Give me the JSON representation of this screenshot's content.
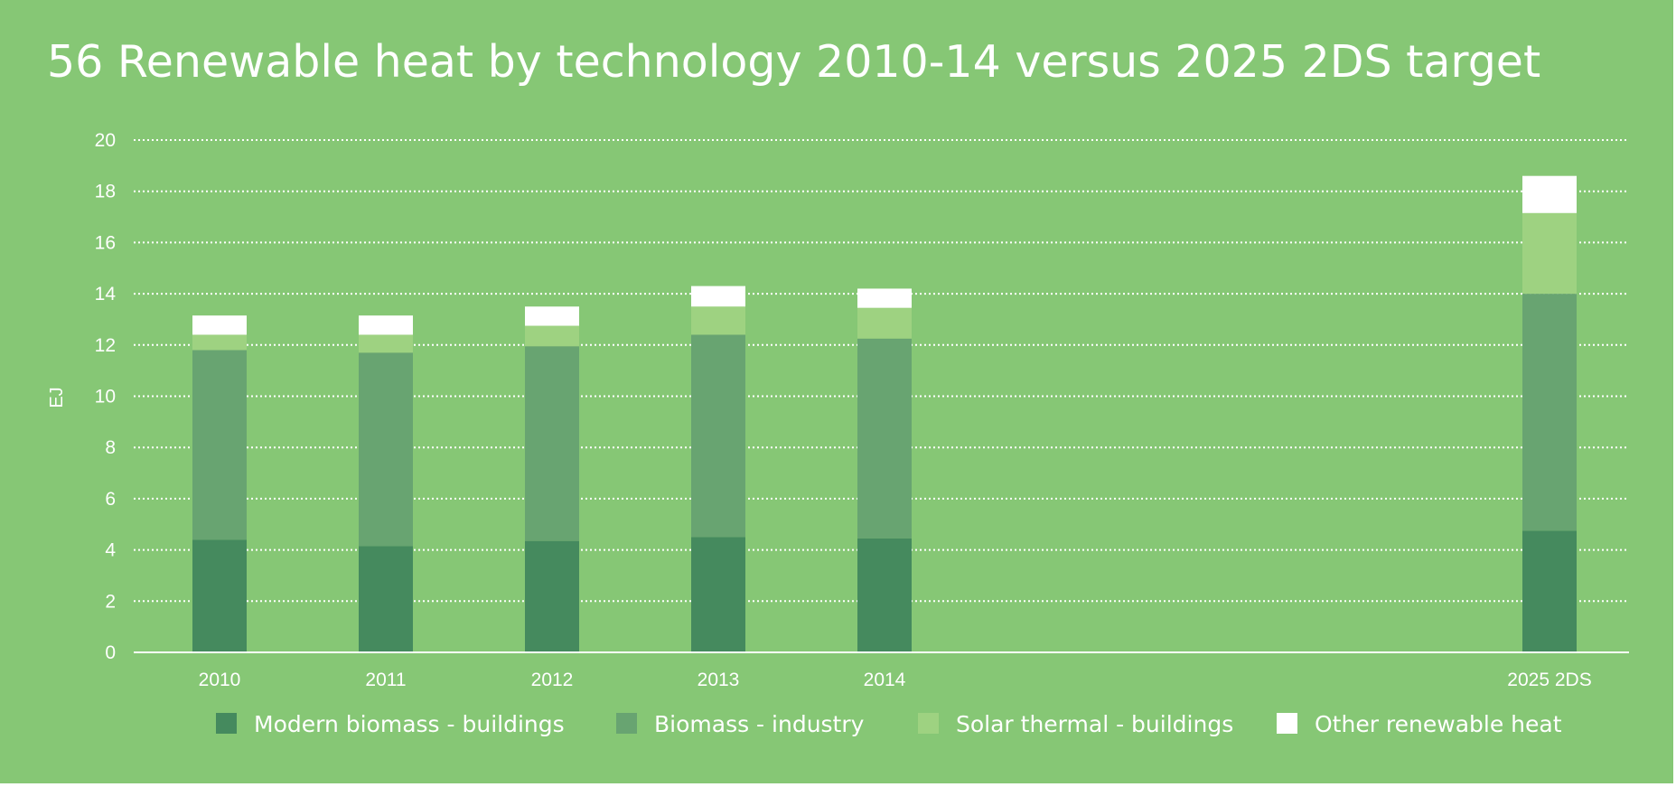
{
  "chart_data": {
    "type": "bar",
    "stacked": true,
    "title": "56 Renewable heat by technology 2010-14 versus 2025 2DS target",
    "xlabel": "",
    "ylabel": "EJ",
    "ylim": [
      0,
      20
    ],
    "yticks": [
      0,
      2,
      4,
      6,
      8,
      10,
      12,
      14,
      16,
      18,
      20
    ],
    "grid": true,
    "legend_position": "bottom",
    "categories": [
      "2010",
      "2011",
      "2012",
      "2013",
      "2014",
      "2025 2DS"
    ],
    "series": [
      {
        "name": "Modern biomass - buildings",
        "color": "#458a5e",
        "values": [
          4.4,
          4.15,
          4.35,
          4.5,
          4.45,
          4.75
        ]
      },
      {
        "name": "Biomass - industry",
        "color": "#68a471",
        "values": [
          7.4,
          7.55,
          7.6,
          7.9,
          7.8,
          9.25
        ]
      },
      {
        "name": "Solar thermal - buildings",
        "color": "#9ed281",
        "values": [
          0.6,
          0.7,
          0.8,
          1.1,
          1.2,
          3.15
        ]
      },
      {
        "name": "Other renewable heat",
        "color": "#ffffff",
        "values": [
          0.75,
          0.75,
          0.75,
          0.8,
          0.75,
          1.45
        ]
      }
    ]
  },
  "colors": {
    "background": "#86c775",
    "text": "#ffffff",
    "gridline": "#ffffff"
  }
}
